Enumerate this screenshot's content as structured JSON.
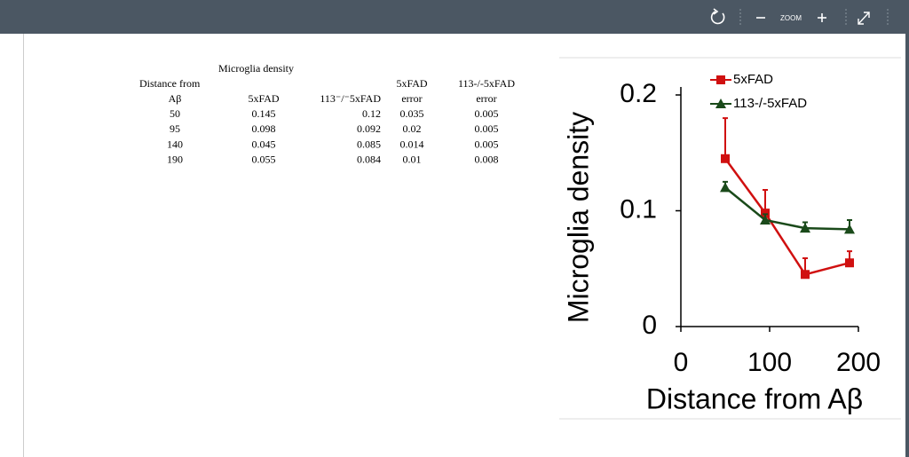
{
  "toolbar": {
    "zoom_label": "ZOOM"
  },
  "table": {
    "caption": "Microglia density",
    "header_top": [
      "Distance from",
      "",
      "",
      "5xFAD",
      "113-/-5xFAD"
    ],
    "header": [
      "Aβ",
      "5xFAD",
      "113⁻/⁻5xFAD",
      "error",
      "error"
    ],
    "rows": [
      [
        50,
        0.145,
        0.12,
        0.035,
        0.005
      ],
      [
        95,
        0.098,
        0.092,
        0.02,
        0.005
      ],
      [
        140,
        0.045,
        0.085,
        0.014,
        0.005
      ],
      [
        190,
        0.055,
        0.084,
        0.01,
        0.008
      ]
    ]
  },
  "chart_data": {
    "type": "line",
    "x_label": "Distance from Aβ",
    "y_label": "Microglia density",
    "x": [
      50,
      95,
      140,
      190
    ],
    "series": [
      {
        "name": "5xFAD",
        "color": "#d01010",
        "marker": "square",
        "values": [
          0.145,
          0.098,
          0.045,
          0.055
        ],
        "errors": [
          0.035,
          0.02,
          0.014,
          0.01
        ]
      },
      {
        "name": "113-/-5xFAD",
        "color": "#1a4a1a",
        "marker": "triangle",
        "values": [
          0.12,
          0.092,
          0.085,
          0.084
        ],
        "errors": [
          0.005,
          0.005,
          0.005,
          0.008
        ]
      }
    ],
    "xlim": [
      0,
      200
    ],
    "xticks": [
      0,
      100,
      200
    ],
    "ylim": [
      0,
      0.2
    ],
    "yticks": [
      0,
      0.1,
      0.2
    ]
  }
}
